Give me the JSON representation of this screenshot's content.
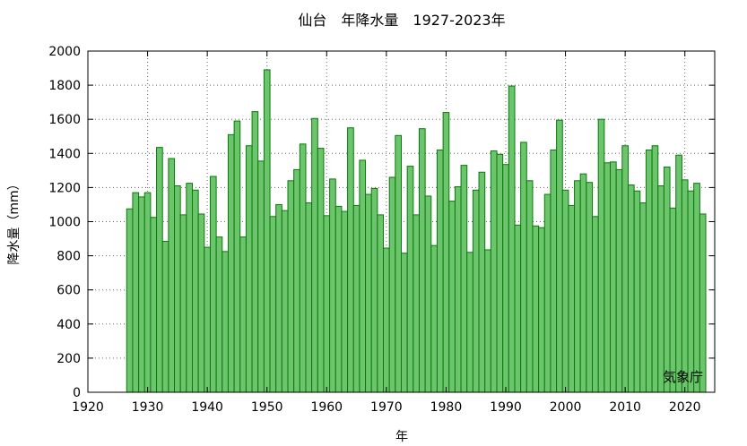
{
  "chart_data": {
    "type": "bar",
    "title": "仙台　年降水量　1927-2023年",
    "xlabel": "年",
    "ylabel": "降水量（mm）",
    "source_label": "気象庁",
    "xlim": [
      1920,
      2025
    ],
    "ylim": [
      0,
      2000
    ],
    "x_ticks": [
      1920,
      1930,
      1940,
      1950,
      1960,
      1970,
      1980,
      1990,
      2000,
      2010,
      2020
    ],
    "y_ticks": [
      0,
      200,
      400,
      600,
      800,
      1000,
      1200,
      1400,
      1600,
      1800,
      2000
    ],
    "grid": true,
    "colors": {
      "bar_fill": "#6cc46c",
      "bar_edge": "#0a7a0a"
    },
    "years": [
      1927,
      1928,
      1929,
      1930,
      1931,
      1932,
      1933,
      1934,
      1935,
      1936,
      1937,
      1938,
      1939,
      1940,
      1941,
      1942,
      1943,
      1944,
      1945,
      1946,
      1947,
      1948,
      1949,
      1950,
      1951,
      1952,
      1953,
      1954,
      1955,
      1956,
      1957,
      1958,
      1959,
      1960,
      1961,
      1962,
      1963,
      1964,
      1965,
      1966,
      1967,
      1968,
      1969,
      1970,
      1971,
      1972,
      1973,
      1974,
      1975,
      1976,
      1977,
      1978,
      1979,
      1980,
      1981,
      1982,
      1983,
      1984,
      1985,
      1986,
      1987,
      1988,
      1989,
      1990,
      1991,
      1992,
      1993,
      1994,
      1995,
      1996,
      1997,
      1998,
      1999,
      2000,
      2001,
      2002,
      2003,
      2004,
      2005,
      2006,
      2007,
      2008,
      2009,
      2010,
      2011,
      2012,
      2013,
      2014,
      2015,
      2016,
      2017,
      2018,
      2019,
      2020,
      2021,
      2022,
      2023
    ],
    "values": [
      1075,
      1170,
      1145,
      1170,
      1025,
      1435,
      885,
      1370,
      1210,
      1040,
      1225,
      1185,
      1045,
      850,
      1265,
      910,
      825,
      1510,
      1590,
      910,
      1445,
      1645,
      1355,
      1890,
      1030,
      1100,
      1065,
      1240,
      1305,
      1455,
      1110,
      1605,
      1430,
      1035,
      1250,
      1090,
      1060,
      1550,
      1095,
      1360,
      1160,
      1195,
      1040,
      845,
      1260,
      1505,
      815,
      1325,
      1040,
      1545,
      1150,
      860,
      1420,
      1640,
      1120,
      1205,
      1330,
      820,
      1185,
      1290,
      835,
      1415,
      1395,
      1335,
      1795,
      980,
      1465,
      1240,
      975,
      965,
      1160,
      1420,
      1595,
      1185,
      1095,
      1240,
      1280,
      1230,
      1030,
      1600,
      1345,
      1350,
      1305,
      1445,
      1215,
      1180,
      1110,
      1420,
      1445,
      1210,
      1320,
      1080,
      1390,
      1245,
      1180,
      1225,
      1045
    ]
  }
}
